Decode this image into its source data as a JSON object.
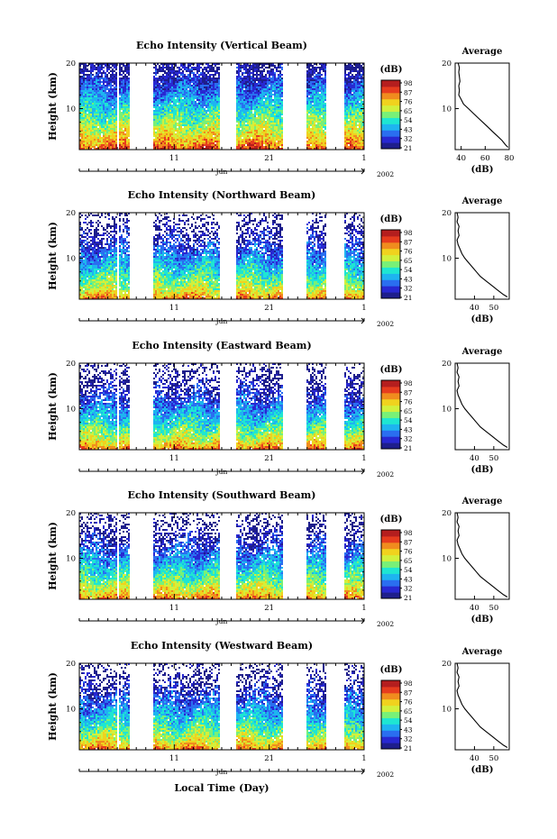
{
  "chart_data": [
    {
      "type": "heatmap",
      "title": "Echo Intensity (Vertical Beam)",
      "ylabel": "Height (km)",
      "ylim": [
        1,
        20
      ],
      "yticks": [
        10,
        20
      ],
      "xticks": [
        11,
        21,
        1
      ],
      "month": "Jun",
      "year": "2002",
      "colorbar_unit": "(dB)",
      "colorbar_ticks": [
        98,
        87,
        76,
        65,
        54,
        43,
        32,
        21
      ],
      "average": {
        "title": "Average",
        "xlabel": "(dB)",
        "xlim": [
          35,
          80
        ],
        "xticks": [
          40,
          60,
          80
        ],
        "ylim": [
          1,
          20
        ],
        "yticks": [
          10,
          20
        ],
        "profile": [
          [
            79,
            1.5
          ],
          [
            77,
            2
          ],
          [
            74,
            3
          ],
          [
            70,
            4
          ],
          [
            66,
            5
          ],
          [
            62,
            6
          ],
          [
            58,
            7
          ],
          [
            54,
            8
          ],
          [
            50,
            9
          ],
          [
            46,
            10
          ],
          [
            42,
            11
          ],
          [
            40,
            12
          ],
          [
            38,
            13
          ],
          [
            38.5,
            14
          ],
          [
            38,
            15
          ],
          [
            39,
            16
          ],
          [
            38.5,
            17
          ],
          [
            38,
            18
          ],
          [
            38.5,
            19
          ],
          [
            37.5,
            20
          ]
        ]
      }
    },
    {
      "type": "heatmap",
      "title": "Echo Intensity (Northward Beam)",
      "ylabel": "Height (km)",
      "ylim": [
        1,
        20
      ],
      "yticks": [
        10,
        20
      ],
      "xticks": [
        11,
        21,
        1
      ],
      "month": "Jun",
      "year": "2002",
      "colorbar_unit": "(dB)",
      "colorbar_ticks": [
        98,
        87,
        76,
        65,
        54,
        43,
        32,
        21
      ],
      "average": {
        "title": "Average",
        "xlabel": "(dB)",
        "xlim": [
          30,
          58
        ],
        "xticks": [
          40,
          50
        ],
        "ylim": [
          1,
          20
        ],
        "yticks": [
          10,
          20
        ],
        "profile": [
          [
            57,
            1.5
          ],
          [
            55,
            2
          ],
          [
            52,
            3
          ],
          [
            49,
            4
          ],
          [
            46,
            5
          ],
          [
            43,
            6
          ],
          [
            41,
            7
          ],
          [
            39,
            8
          ],
          [
            37,
            9
          ],
          [
            35,
            10
          ],
          [
            33.5,
            11
          ],
          [
            32.5,
            12
          ],
          [
            31.5,
            13
          ],
          [
            31,
            14
          ],
          [
            32,
            15
          ],
          [
            31.5,
            16
          ],
          [
            32,
            17
          ],
          [
            31,
            18
          ],
          [
            31.5,
            19
          ],
          [
            31,
            20
          ]
        ]
      }
    },
    {
      "type": "heatmap",
      "title": "Echo Intensity (Eastward Beam)",
      "ylabel": "Height (km)",
      "ylim": [
        1,
        20
      ],
      "yticks": [
        10,
        20
      ],
      "xticks": [
        11,
        21,
        1
      ],
      "month": "Jun",
      "year": "2002",
      "colorbar_unit": "(dB)",
      "colorbar_ticks": [
        98,
        87,
        76,
        65,
        54,
        43,
        32,
        21
      ],
      "average": {
        "title": "Average",
        "xlabel": "(dB)",
        "xlim": [
          30,
          58
        ],
        "xticks": [
          40,
          50
        ],
        "ylim": [
          1,
          20
        ],
        "yticks": [
          10,
          20
        ],
        "profile": [
          [
            57,
            1.5
          ],
          [
            55,
            2
          ],
          [
            52,
            3
          ],
          [
            49,
            4
          ],
          [
            46,
            5
          ],
          [
            43,
            6
          ],
          [
            41,
            7
          ],
          [
            39,
            8
          ],
          [
            37,
            9
          ],
          [
            35,
            10
          ],
          [
            33.5,
            11
          ],
          [
            32.5,
            12
          ],
          [
            31.5,
            13
          ],
          [
            31,
            14
          ],
          [
            32,
            15
          ],
          [
            31.5,
            16
          ],
          [
            32,
            17
          ],
          [
            31,
            18
          ],
          [
            31.5,
            19
          ],
          [
            31,
            20
          ]
        ]
      }
    },
    {
      "type": "heatmap",
      "title": "Echo Intensity (Southward Beam)",
      "ylabel": "Height (km)",
      "ylim": [
        1,
        20
      ],
      "yticks": [
        10,
        20
      ],
      "xticks": [
        11,
        21,
        1
      ],
      "month": "Jun",
      "year": "2002",
      "colorbar_unit": "(dB)",
      "colorbar_ticks": [
        98,
        87,
        76,
        65,
        54,
        43,
        32,
        21
      ],
      "average": {
        "title": "Average",
        "xlabel": "(dB)",
        "xlim": [
          30,
          58
        ],
        "xticks": [
          40,
          50
        ],
        "ylim": [
          1,
          20
        ],
        "yticks": [
          10,
          20
        ],
        "profile": [
          [
            57,
            1.5
          ],
          [
            55,
            2
          ],
          [
            52,
            3
          ],
          [
            49,
            4
          ],
          [
            46,
            5
          ],
          [
            43,
            6
          ],
          [
            41,
            7
          ],
          [
            39,
            8
          ],
          [
            37,
            9
          ],
          [
            35,
            10
          ],
          [
            33.5,
            11
          ],
          [
            32.5,
            12
          ],
          [
            31.5,
            13
          ],
          [
            31,
            14
          ],
          [
            32,
            15
          ],
          [
            31.5,
            16
          ],
          [
            32,
            17
          ],
          [
            31,
            18
          ],
          [
            31.5,
            19
          ],
          [
            31,
            20
          ]
        ]
      }
    },
    {
      "type": "heatmap",
      "title": "Echo Intensity (Westward Beam)",
      "ylabel": "Height (km)",
      "ylim": [
        1,
        20
      ],
      "yticks": [
        10,
        20
      ],
      "xticks": [
        11,
        21,
        1
      ],
      "month": "Jun",
      "year": "2002",
      "colorbar_unit": "(dB)",
      "colorbar_ticks": [
        98,
        87,
        76,
        65,
        54,
        43,
        32,
        21
      ],
      "average": {
        "title": "Average",
        "xlabel": "(dB)",
        "xlim": [
          30,
          58
        ],
        "xticks": [
          40,
          50
        ],
        "ylim": [
          1,
          20
        ],
        "yticks": [
          10,
          20
        ],
        "profile": [
          [
            57,
            1.5
          ],
          [
            55,
            2
          ],
          [
            52,
            3
          ],
          [
            49,
            4
          ],
          [
            46,
            5
          ],
          [
            43,
            6
          ],
          [
            41,
            7
          ],
          [
            39,
            8
          ],
          [
            37,
            9
          ],
          [
            35,
            10
          ],
          [
            33.5,
            11
          ],
          [
            32.5,
            12
          ],
          [
            31.5,
            13
          ],
          [
            31,
            14
          ],
          [
            32,
            15
          ],
          [
            31.5,
            16
          ],
          [
            32,
            17
          ],
          [
            31,
            18
          ],
          [
            31.5,
            19
          ],
          [
            31,
            20
          ]
        ]
      }
    }
  ],
  "bottom_xlabel": "Local Time (Day)",
  "data_gaps_days": [
    [
      5.1,
      5.35
    ],
    [
      6.6,
      6.8
    ],
    [
      9.2,
      10.2
    ],
    [
      19.5,
      22.0
    ],
    [
      28.6,
      29.4
    ],
    [
      31.3,
      31.8
    ],
    [
      36.0,
      37.0
    ]
  ],
  "colors": {
    "colormap": [
      "#1e1e8c",
      "#2828d2",
      "#2a6ef0",
      "#1eb4f0",
      "#1ee6d2",
      "#78f078",
      "#d2f03c",
      "#f0d21e",
      "#f08c1e",
      "#e63c1e",
      "#b41e1e"
    ]
  }
}
